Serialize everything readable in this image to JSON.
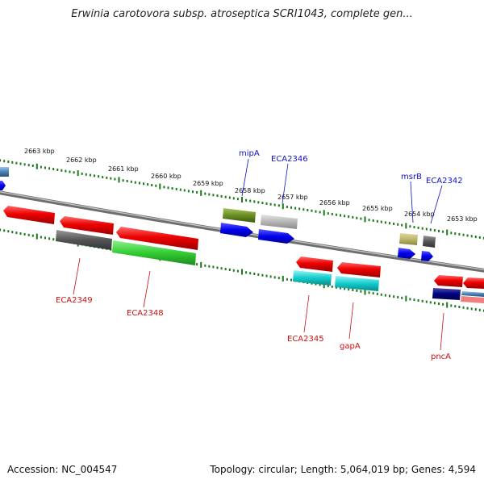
{
  "title": "Erwinia carotovora subsp. atroseptica SCRI1043, complete gen...",
  "footer": {
    "accession": "Accession: NC_004547",
    "topology": "Topology: circular; Length: 5,064,019 bp; Genes: 4,594"
  },
  "colors": {
    "backbone": "#8a8a8a",
    "ticks": "#1a7a1a",
    "label_top": "#1010cc",
    "label_bottom": "#cc1010"
  },
  "scale_labels": [
    "2663 kbp",
    "2662 kbp",
    "2661 kbp",
    "2660 kbp",
    "2659 kbp",
    "2658 kbp",
    "2657 kbp",
    "2656 kbp",
    "2655 kbp",
    "2654 kbp",
    "2653 kbp"
  ],
  "gene_labels_top": [
    "mipA",
    "ECA2346",
    "msrB",
    "ECA2342"
  ],
  "gene_labels_bottom": [
    "ECA2349",
    "ECA2348",
    "ECA2345",
    "gapA",
    "pncA"
  ]
}
